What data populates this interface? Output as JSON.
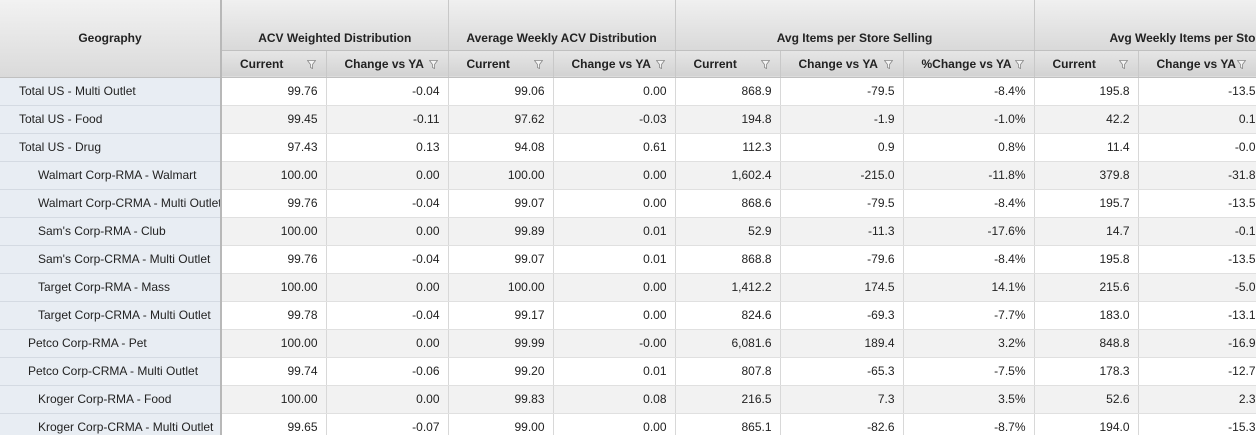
{
  "header": {
    "geography": "Geography",
    "groups": [
      "ACV Weighted Distribution",
      "Average Weekly ACV Distribution",
      "Avg Items per Store Selling",
      "Avg Weekly Items per Sto"
    ],
    "columns": [
      "Current",
      "Change vs YA",
      "Current",
      "Change vs YA",
      "Current",
      "Change vs YA",
      "%Change vs YA",
      "Current",
      "Change vs YA"
    ]
  },
  "rows": [
    {
      "label": "Total US - Multi Outlet",
      "values": [
        "99.76",
        "-0.04",
        "99.06",
        "0.00",
        "868.9",
        "-79.5",
        "-8.4%",
        "195.8",
        "-13.5"
      ]
    },
    {
      "label": "Total US - Food",
      "values": [
        "99.45",
        "-0.11",
        "97.62",
        "-0.03",
        "194.8",
        "-1.9",
        "-1.0%",
        "42.2",
        "0.1"
      ]
    },
    {
      "label": "Total US - Drug",
      "values": [
        "97.43",
        "0.13",
        "94.08",
        "0.61",
        "112.3",
        "0.9",
        "0.8%",
        "11.4",
        "-0.0"
      ]
    },
    {
      "label": "Walmart Corp-RMA - Walmart",
      "values": [
        "100.00",
        "0.00",
        "100.00",
        "0.00",
        "1,602.4",
        "-215.0",
        "-11.8%",
        "379.8",
        "-31.8"
      ]
    },
    {
      "label": "Walmart Corp-CRMA - Multi Outlet",
      "values": [
        "99.76",
        "-0.04",
        "99.07",
        "0.00",
        "868.6",
        "-79.5",
        "-8.4%",
        "195.7",
        "-13.5"
      ]
    },
    {
      "label": "Sam's Corp-RMA - Club",
      "values": [
        "100.00",
        "0.00",
        "99.89",
        "0.01",
        "52.9",
        "-11.3",
        "-17.6%",
        "14.7",
        "-0.1"
      ]
    },
    {
      "label": "Sam's Corp-CRMA - Multi Outlet",
      "values": [
        "99.76",
        "-0.04",
        "99.07",
        "0.01",
        "868.8",
        "-79.6",
        "-8.4%",
        "195.8",
        "-13.5"
      ]
    },
    {
      "label": "Target Corp-RMA - Mass",
      "values": [
        "100.00",
        "0.00",
        "100.00",
        "0.00",
        "1,412.2",
        "174.5",
        "14.1%",
        "215.6",
        "-5.0"
      ]
    },
    {
      "label": "Target Corp-CRMA - Multi Outlet",
      "values": [
        "99.78",
        "-0.04",
        "99.17",
        "0.00",
        "824.6",
        "-69.3",
        "-7.7%",
        "183.0",
        "-13.1"
      ]
    },
    {
      "label": "Petco Corp-RMA - Pet",
      "values": [
        "100.00",
        "0.00",
        "99.99",
        "-0.00",
        "6,081.6",
        "189.4",
        "3.2%",
        "848.8",
        "-16.9"
      ]
    },
    {
      "label": "Petco Corp-CRMA - Multi Outlet",
      "values": [
        "99.74",
        "-0.06",
        "99.20",
        "0.01",
        "807.8",
        "-65.3",
        "-7.5%",
        "178.3",
        "-12.7"
      ]
    },
    {
      "label": "Kroger Corp-RMA - Food",
      "values": [
        "100.00",
        "0.00",
        "99.83",
        "0.08",
        "216.5",
        "7.3",
        "3.5%",
        "52.6",
        "2.3"
      ]
    },
    {
      "label": "Kroger Corp-CRMA - Multi Outlet",
      "values": [
        "99.65",
        "-0.07",
        "99.00",
        "0.00",
        "865.1",
        "-82.6",
        "-8.7%",
        "194.0",
        "-15.3"
      ]
    }
  ]
}
